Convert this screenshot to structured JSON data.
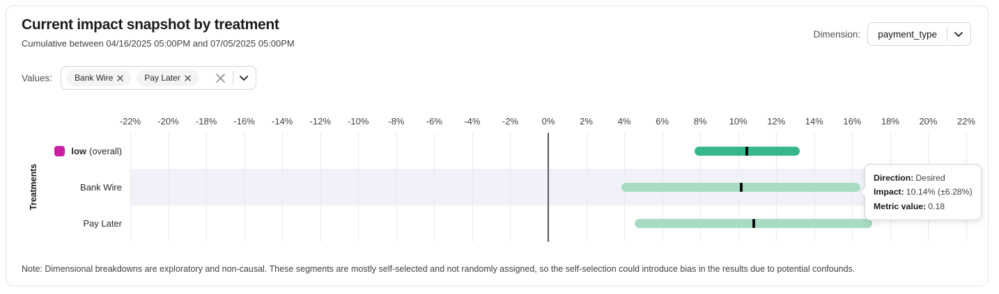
{
  "header": {
    "title": "Current impact snapshot by treatment",
    "subtitle": "Cumulative between 04/16/2025 05:00PM and 07/05/2025 05:00PM",
    "dimension_label": "Dimension:",
    "dimension_value": "payment_type"
  },
  "filters": {
    "values_label": "Values:",
    "chips": [
      {
        "label": "Bank Wire"
      },
      {
        "label": "Pay Later"
      }
    ]
  },
  "chart_data": {
    "type": "bar",
    "subtype": "horizontal_interval",
    "title": "Current impact snapshot by treatment",
    "ylabel": "Treatments",
    "xlim": [
      -22,
      22
    ],
    "x_tick_labels": [
      "-22%",
      "-20%",
      "-18%",
      "-16%",
      "-14%",
      "-12%",
      "-10%",
      "-8%",
      "-6%",
      "-4%",
      "-2%",
      "0%",
      "2%",
      "4%",
      "6%",
      "8%",
      "10%",
      "12%",
      "14%",
      "16%",
      "18%",
      "20%",
      "22%"
    ],
    "grid": true,
    "highlight_color": "#f1f1fa",
    "marker_color": "#0b0b0d",
    "rows": [
      {
        "label": "low",
        "label_note": "(overall)",
        "impact_pct": 10.45,
        "ci_low_pct": 7.7,
        "ci_high_pct": 13.25,
        "bar_color": "#35b78a",
        "legend_color": "#cb1fa1",
        "highlighted": false
      },
      {
        "label": "Bank Wire",
        "label_note": "",
        "impact_pct": 10.14,
        "ci_low_pct": 3.86,
        "ci_high_pct": 16.42,
        "bar_color": "#a8dcc2",
        "legend_color": "",
        "highlighted": true
      },
      {
        "label": "Pay Later",
        "label_note": "",
        "impact_pct": 10.82,
        "ci_low_pct": 4.55,
        "ci_high_pct": 17.05,
        "bar_color": "#a8dcc2",
        "legend_color": "",
        "highlighted": false
      }
    ]
  },
  "tooltip": {
    "rows": [
      {
        "label": "Direction:",
        "value": "Desired"
      },
      {
        "label": "Impact:",
        "value": "10.14% (±6.28%)"
      },
      {
        "label": "Metric value:",
        "value": "0.18"
      }
    ]
  },
  "note": "Note: Dimensional breakdowns are exploratory and non-causal. These segments are mostly self-selected and not randomly assigned, so the self-selection could introduce bias in the results due to potential confounds."
}
